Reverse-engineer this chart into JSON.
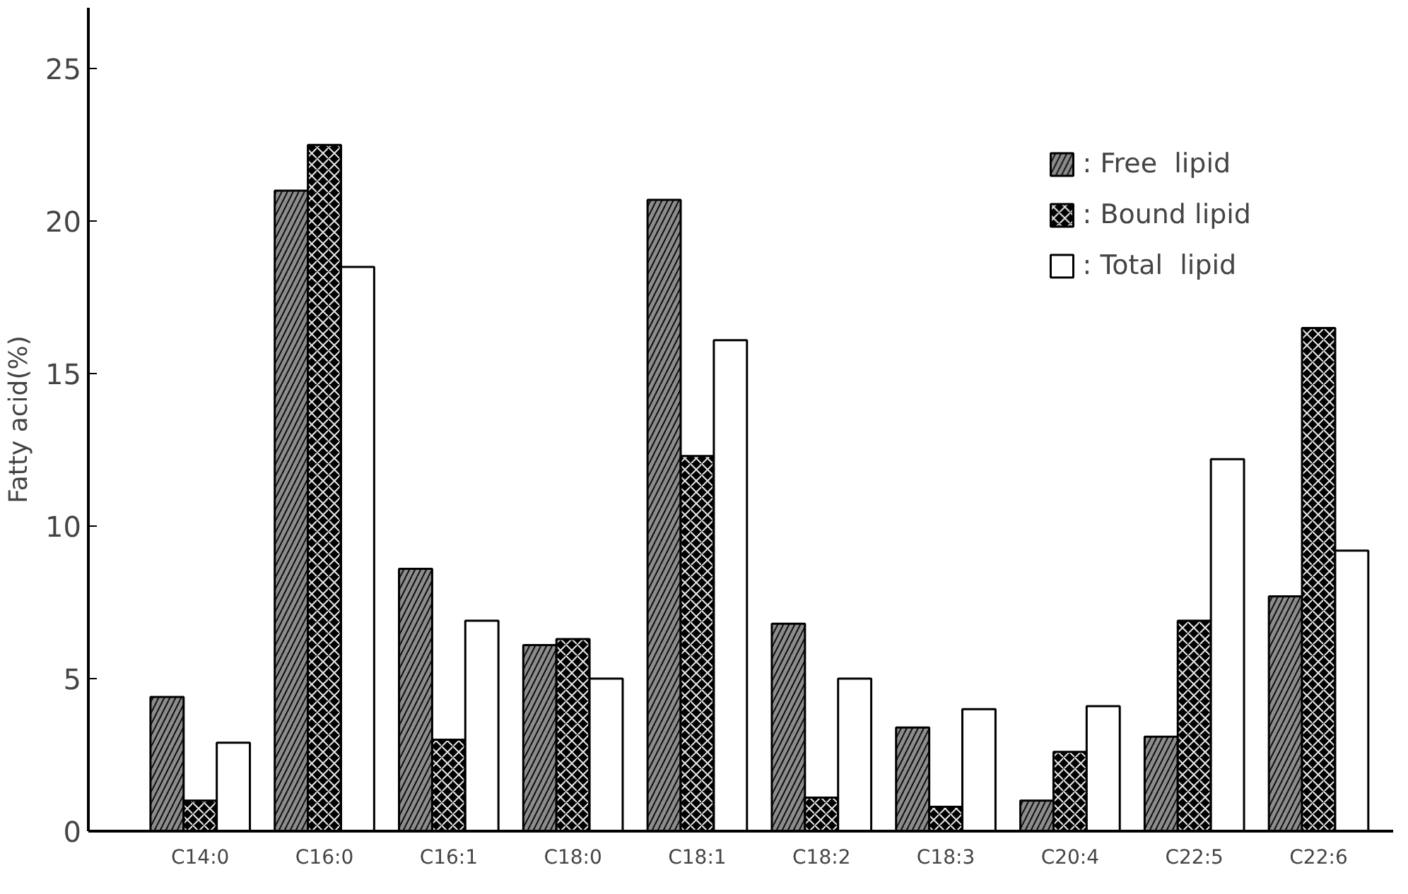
{
  "chart_data": {
    "type": "bar",
    "ylabel": "Fatty acid(%)",
    "categories": [
      "C14:0",
      "C16:0",
      "C16:1",
      "C18:0",
      "C18:1",
      "C18:2",
      "C18:3",
      "C20:4",
      "C22:5",
      "C22:6"
    ],
    "series": [
      {
        "name": ": Free  lipid",
        "color": "#8c8c8c",
        "values": [
          4.4,
          21.0,
          8.6,
          6.1,
          20.7,
          6.8,
          3.4,
          1.0,
          3.1,
          7.7
        ]
      },
      {
        "name": ": Bound lipid",
        "color": "#000000",
        "values": [
          1.0,
          22.5,
          3.0,
          6.3,
          12.3,
          1.1,
          0.8,
          2.6,
          6.9,
          16.5
        ]
      },
      {
        "name": ": Total  lipid",
        "color": "#ffffff",
        "values": [
          2.9,
          18.5,
          6.9,
          5.0,
          16.1,
          5.0,
          4.0,
          4.1,
          12.2,
          9.2
        ]
      }
    ],
    "ylim": [
      0,
      27
    ],
    "yticks": [
      0,
      5,
      10,
      15,
      20,
      25
    ],
    "grid": false,
    "legend": "top right"
  }
}
